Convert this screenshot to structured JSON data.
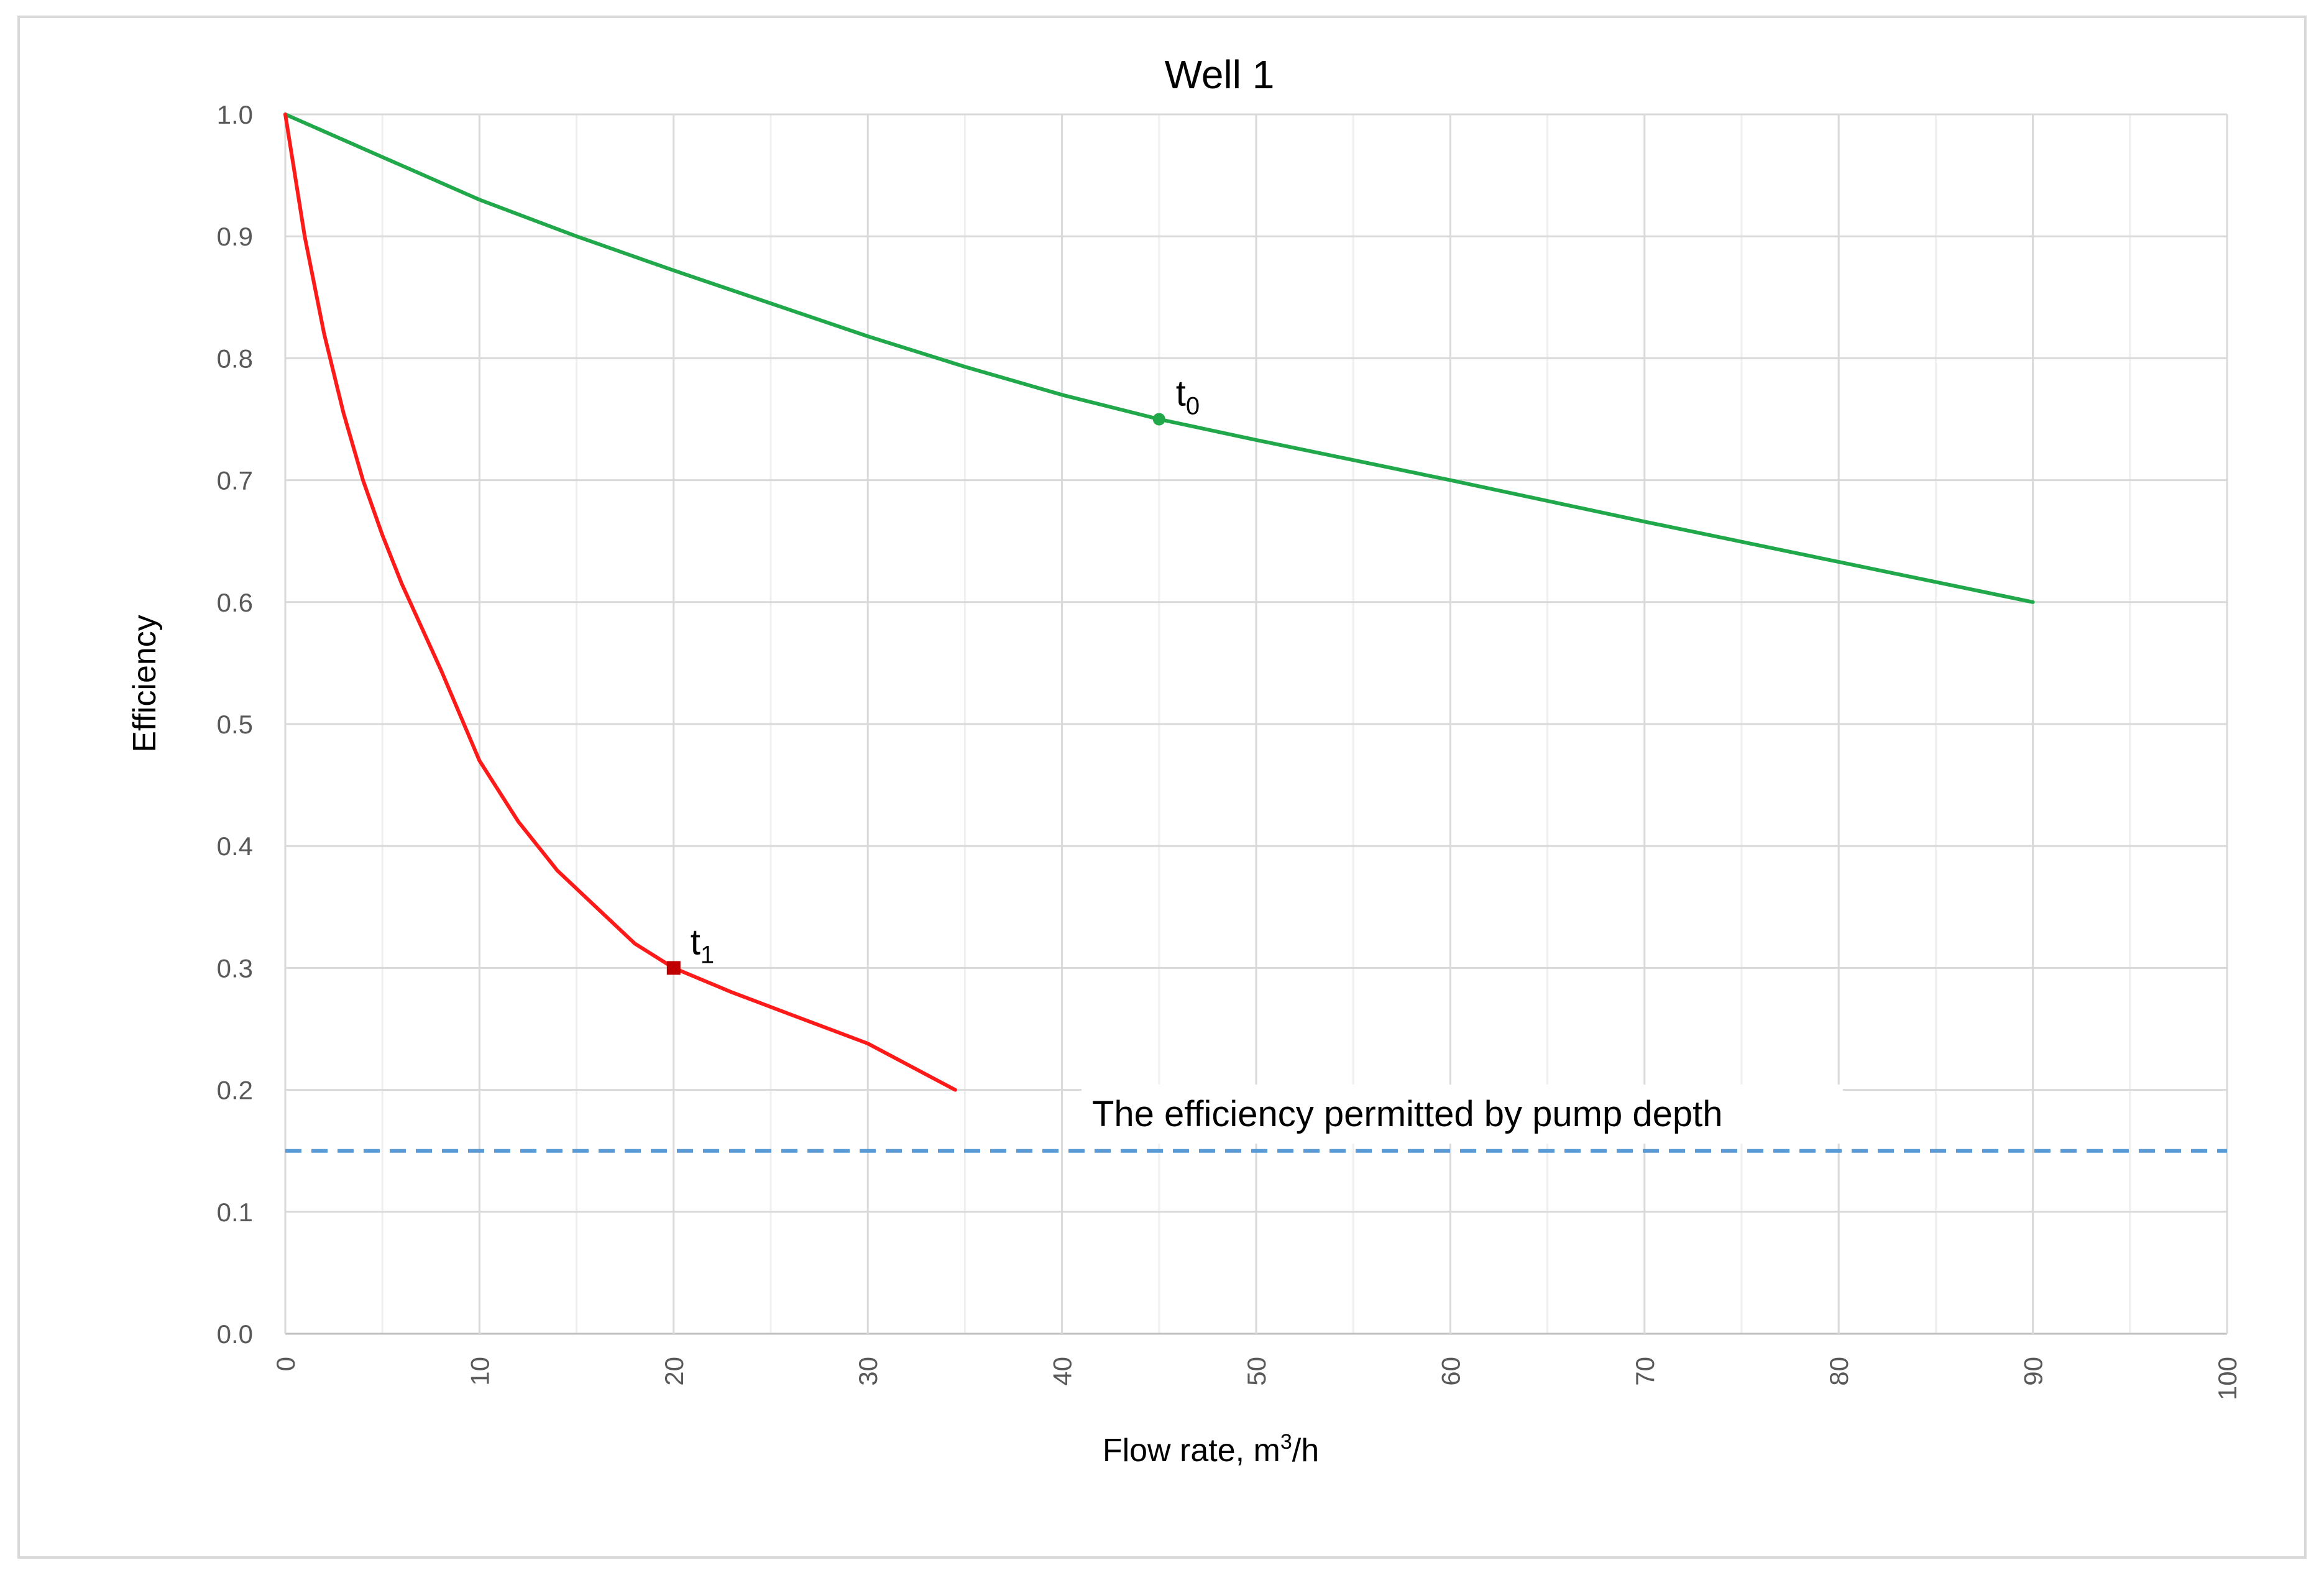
{
  "chart_data": {
    "type": "line",
    "title": "Well 1",
    "xlabel_main": "Flow rate, m",
    "xlabel_sup": "3",
    "xlabel_tail": "/h",
    "ylabel": "Efficiency",
    "xlim": [
      0,
      100
    ],
    "ylim": [
      0,
      1.0
    ],
    "x_ticks": [
      "0",
      "10",
      "20",
      "30",
      "40",
      "50",
      "60",
      "70",
      "80",
      "90",
      "100"
    ],
    "y_ticks": [
      "0.0",
      "0.1",
      "0.2",
      "0.3",
      "0.4",
      "0.5",
      "0.6",
      "0.7",
      "0.8",
      "0.9",
      "1.0"
    ],
    "grid": true,
    "series": [
      {
        "color": "#21a84a",
        "points": [
          [
            0,
            1.0
          ],
          [
            5,
            0.965
          ],
          [
            10,
            0.93
          ],
          [
            15,
            0.9
          ],
          [
            20,
            0.872
          ],
          [
            25,
            0.845
          ],
          [
            30,
            0.818
          ],
          [
            35,
            0.793
          ],
          [
            40,
            0.77
          ],
          [
            45,
            0.75
          ],
          [
            50,
            0.733
          ],
          [
            60,
            0.7
          ],
          [
            70,
            0.666
          ],
          [
            80,
            0.633
          ],
          [
            90,
            0.6
          ]
        ]
      },
      {
        "color": "#ff1a1a",
        "points": [
          [
            0,
            1.0
          ],
          [
            1,
            0.9
          ],
          [
            2,
            0.82
          ],
          [
            3,
            0.755
          ],
          [
            4,
            0.7
          ],
          [
            5,
            0.655
          ],
          [
            6,
            0.615
          ],
          [
            8,
            0.545
          ],
          [
            10,
            0.47
          ],
          [
            12,
            0.42
          ],
          [
            14,
            0.38
          ],
          [
            16,
            0.35
          ],
          [
            18,
            0.32
          ],
          [
            20,
            0.3
          ],
          [
            23,
            0.28
          ],
          [
            26,
            0.262
          ],
          [
            30,
            0.238
          ],
          [
            34.5,
            0.2
          ]
        ]
      }
    ],
    "reference_line": {
      "y": 0.15,
      "color": "#5b9bd5",
      "label": "The efficiency permitted by pump depth"
    },
    "annotations": [
      {
        "x": 45,
        "y": 0.75,
        "base": "t",
        "sub": "0",
        "color": "#21a84a",
        "marker": "circle"
      },
      {
        "x": 20,
        "y": 0.3,
        "base": "t",
        "sub": "1",
        "color": "#c00000",
        "marker": "square"
      }
    ]
  }
}
